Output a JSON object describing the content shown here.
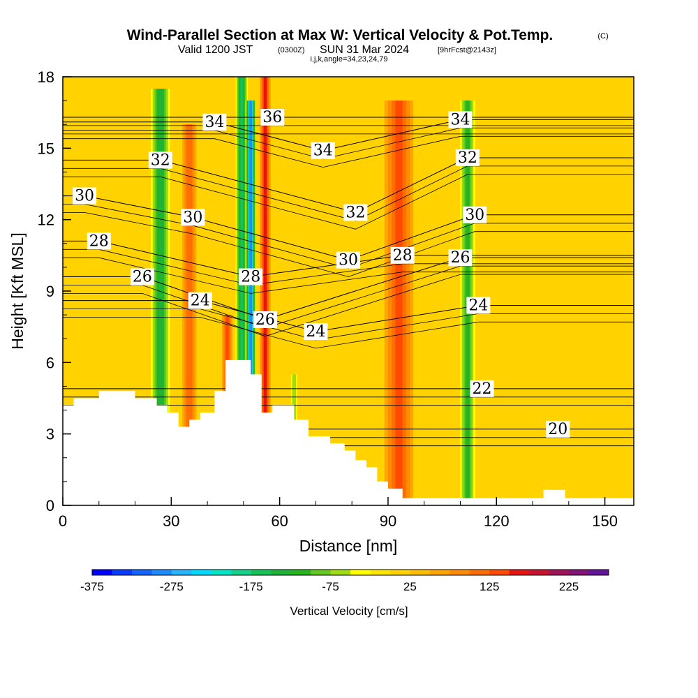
{
  "header": {
    "title": "Wind-Parallel Section at Max W: Vertical Velocity & Pot.Temp.",
    "copyright": "(C)",
    "valid_prefix": "Valid 1200 JST",
    "valid_utc": "(0300Z)",
    "valid_date": "SUN 31 Mar 2024",
    "forecast_tag": "[9hrFcst@2143z]",
    "indices": "i,j,k,angle=34,23,24,79"
  },
  "chart_data": {
    "type": "heatmap",
    "xlabel": "Distance [nm]",
    "ylabel": "Height [Kft MSL]",
    "xlim": [
      0,
      158
    ],
    "ylim": [
      0,
      18
    ],
    "x_ticks": [
      0,
      30,
      60,
      90,
      120,
      150
    ],
    "y_ticks": [
      0,
      3,
      6,
      9,
      12,
      15,
      18
    ],
    "grid": false,
    "background_value": 0,
    "terrain_profile": [
      [
        0,
        4.2
      ],
      [
        3,
        4.2
      ],
      [
        3,
        4.5
      ],
      [
        10,
        4.5
      ],
      [
        10,
        4.8
      ],
      [
        20,
        4.8
      ],
      [
        20,
        4.5
      ],
      [
        26,
        4.5
      ],
      [
        26,
        4.2
      ],
      [
        29,
        4.2
      ],
      [
        29,
        3.9
      ],
      [
        32,
        3.9
      ],
      [
        32,
        3.3
      ],
      [
        35,
        3.3
      ],
      [
        35,
        3.6
      ],
      [
        38,
        3.6
      ],
      [
        38,
        3.9
      ],
      [
        42,
        3.9
      ],
      [
        42,
        4.8
      ],
      [
        45,
        4.8
      ],
      [
        45,
        6.1
      ],
      [
        52,
        6.1
      ],
      [
        52,
        5.5
      ],
      [
        55,
        5.5
      ],
      [
        55,
        3.9
      ],
      [
        58,
        3.9
      ],
      [
        58,
        4.2
      ],
      [
        64,
        4.2
      ],
      [
        64,
        3.6
      ],
      [
        68,
        3.6
      ],
      [
        68,
        2.9
      ],
      [
        74,
        2.9
      ],
      [
        74,
        2.6
      ],
      [
        78,
        2.6
      ],
      [
        78,
        2.3
      ],
      [
        81,
        2.3
      ],
      [
        81,
        1.9
      ],
      [
        84,
        1.9
      ],
      [
        84,
        1.6
      ],
      [
        87,
        1.6
      ],
      [
        87,
        1.0
      ],
      [
        90,
        1.0
      ],
      [
        90,
        0.7
      ],
      [
        94,
        0.7
      ],
      [
        94,
        0.3
      ],
      [
        133,
        0.3
      ],
      [
        133,
        0.65
      ],
      [
        139,
        0.65
      ],
      [
        139,
        0.3
      ],
      [
        158,
        0.3
      ]
    ],
    "vertical_velocity_features": [
      {
        "x": 27,
        "width": 3.2,
        "value": -150,
        "z_top": 17.5
      },
      {
        "x": 35,
        "width": 2.5,
        "value": 110,
        "z_top": 16
      },
      {
        "x": 45.5,
        "width": 1.8,
        "value": 130,
        "z_top": 8
      },
      {
        "x": 49.5,
        "width": 2.0,
        "value": -175,
        "z_top": 18
      },
      {
        "x": 52,
        "width": 1.6,
        "value": -300,
        "z_top": 17
      },
      {
        "x": 56,
        "width": 1.8,
        "value": 160,
        "z_top": 18
      },
      {
        "x": 93,
        "width": 5,
        "value": 125,
        "z_top": 17
      },
      {
        "x": 112,
        "width": 2.6,
        "value": -130,
        "z_top": 17
      },
      {
        "x": 64,
        "width": 1.2,
        "value": -90,
        "z_top": 5.5
      }
    ],
    "theta_contours": [
      {
        "value": 22,
        "label_x": 116,
        "label_z": 4.9
      },
      {
        "value": 24,
        "label_x": 38,
        "label_z": 8.6
      },
      {
        "value": 24,
        "label_x": 70,
        "label_z": 7.3
      },
      {
        "value": 24,
        "label_x": 115,
        "label_z": 8.4
      },
      {
        "value": 26,
        "label_x": 22,
        "label_z": 9.6
      },
      {
        "value": 26,
        "label_x": 56,
        "label_z": 7.8
      },
      {
        "value": 26,
        "label_x": 110,
        "label_z": 10.4
      },
      {
        "value": 28,
        "label_x": 10,
        "label_z": 11.1
      },
      {
        "value": 28,
        "label_x": 52,
        "label_z": 9.6
      },
      {
        "value": 28,
        "label_x": 94,
        "label_z": 10.5
      },
      {
        "value": 30,
        "label_x": 6,
        "label_z": 13.0
      },
      {
        "value": 30,
        "label_x": 36,
        "label_z": 12.1
      },
      {
        "value": 30,
        "label_x": 79,
        "label_z": 10.3
      },
      {
        "value": 30,
        "label_x": 114,
        "label_z": 12.2
      },
      {
        "value": 32,
        "label_x": 27,
        "label_z": 14.5
      },
      {
        "value": 32,
        "label_x": 81,
        "label_z": 12.3
      },
      {
        "value": 32,
        "label_x": 112,
        "label_z": 14.6
      },
      {
        "value": 34,
        "label_x": 42,
        "label_z": 16.1
      },
      {
        "value": 34,
        "label_x": 72,
        "label_z": 14.9
      },
      {
        "value": 34,
        "label_x": 110,
        "label_z": 16.2
      },
      {
        "value": 36,
        "label_x": 58,
        "label_z": 16.3
      },
      {
        "value": 20,
        "label_x": 137,
        "label_z": 3.2
      }
    ],
    "colorbar": {
      "label": "Vertical Velocity [cm/s]",
      "min": -375,
      "max": 275,
      "step": 25,
      "tick_values": [
        -375,
        -275,
        -175,
        -75,
        25,
        125,
        225
      ],
      "tick_labels": [
        "-375",
        "-275",
        "-175",
        "-75",
        "25",
        "125",
        "225"
      ],
      "colors": [
        "#0000ff",
        "#0a3cff",
        "#1464ff",
        "#1e8cff",
        "#28b4ff",
        "#00dcff",
        "#00e6c8",
        "#14d28c",
        "#14c35a",
        "#1eb43c",
        "#28b41e",
        "#64c81e",
        "#a0dc14",
        "#ffff00",
        "#ffe600",
        "#ffd200",
        "#ffbe00",
        "#ffa500",
        "#ff8c00",
        "#ff6e00",
        "#ff4b00",
        "#e61414",
        "#c81432",
        "#a0145a",
        "#821478",
        "#641496"
      ]
    }
  }
}
